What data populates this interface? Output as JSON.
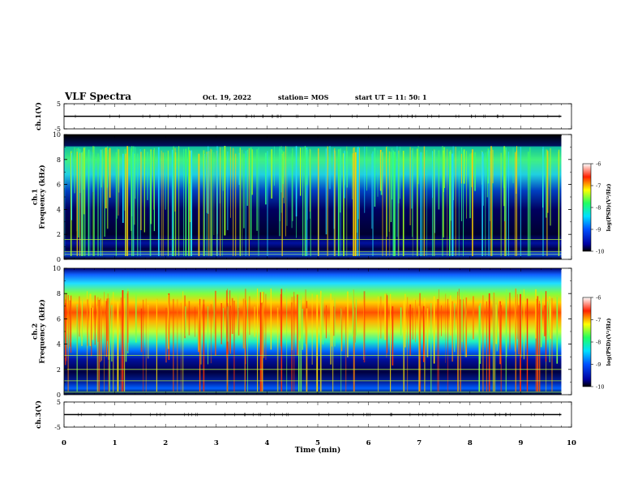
{
  "header": {
    "title": "VLF Spectra",
    "date": "Oct. 19, 2022",
    "station": "station= MOS",
    "start": "start  UT =   11: 50: 1"
  },
  "chart_data": [
    {
      "type": "line",
      "panel": "ch1-waveform",
      "ylabel": "ch.1(V)",
      "ylim": [
        -5,
        5
      ],
      "ytick_labels": [
        "-5",
        "5"
      ],
      "x": [
        0,
        9.8
      ],
      "values": [
        0,
        0
      ]
    },
    {
      "type": "heatmap",
      "panel": "ch1-spectrogram",
      "ylabel": "ch.1\nFrequency (kHz)",
      "ylim": [
        0,
        10
      ],
      "ytick_labels": [
        "0",
        "2",
        "4",
        "6",
        "8",
        "10"
      ],
      "colorbar": {
        "label": "log(PSD)(V²/Hz)",
        "range": [
          -10,
          -6
        ],
        "tick_labels": [
          "-6",
          "-7",
          "-8",
          "-9",
          "-10"
        ]
      },
      "dominant_band_khz": [
        5.5,
        9.0
      ],
      "cutoff_khz": 9.0
    },
    {
      "type": "heatmap",
      "panel": "ch2-spectrogram",
      "ylabel": "ch.2\nFrequency (kHz)",
      "ylim": [
        0,
        10
      ],
      "ytick_labels": [
        "0",
        "2",
        "4",
        "6",
        "8",
        "10"
      ],
      "colorbar": {
        "label": "log(PSD)(V²/Hz)",
        "range": [
          -10,
          -6
        ],
        "tick_labels": [
          "-6",
          "-7",
          "-8",
          "-9",
          "-10"
        ]
      },
      "dominant_band_khz": [
        4.0,
        10.0
      ],
      "peak_khz": 6.5
    },
    {
      "type": "line",
      "panel": "ch3-waveform",
      "ylabel": "ch.3(V)",
      "ylim": [
        -5,
        5
      ],
      "ytick_labels": [
        "-5",
        "5"
      ],
      "x": [
        0,
        9.8
      ],
      "values": [
        0,
        0
      ]
    }
  ],
  "xaxis": {
    "label": "Time (min)",
    "xlim": [
      0,
      10
    ],
    "tick_labels": [
      "0",
      "1",
      "2",
      "3",
      "4",
      "5",
      "6",
      "7",
      "8",
      "9",
      "10"
    ]
  }
}
